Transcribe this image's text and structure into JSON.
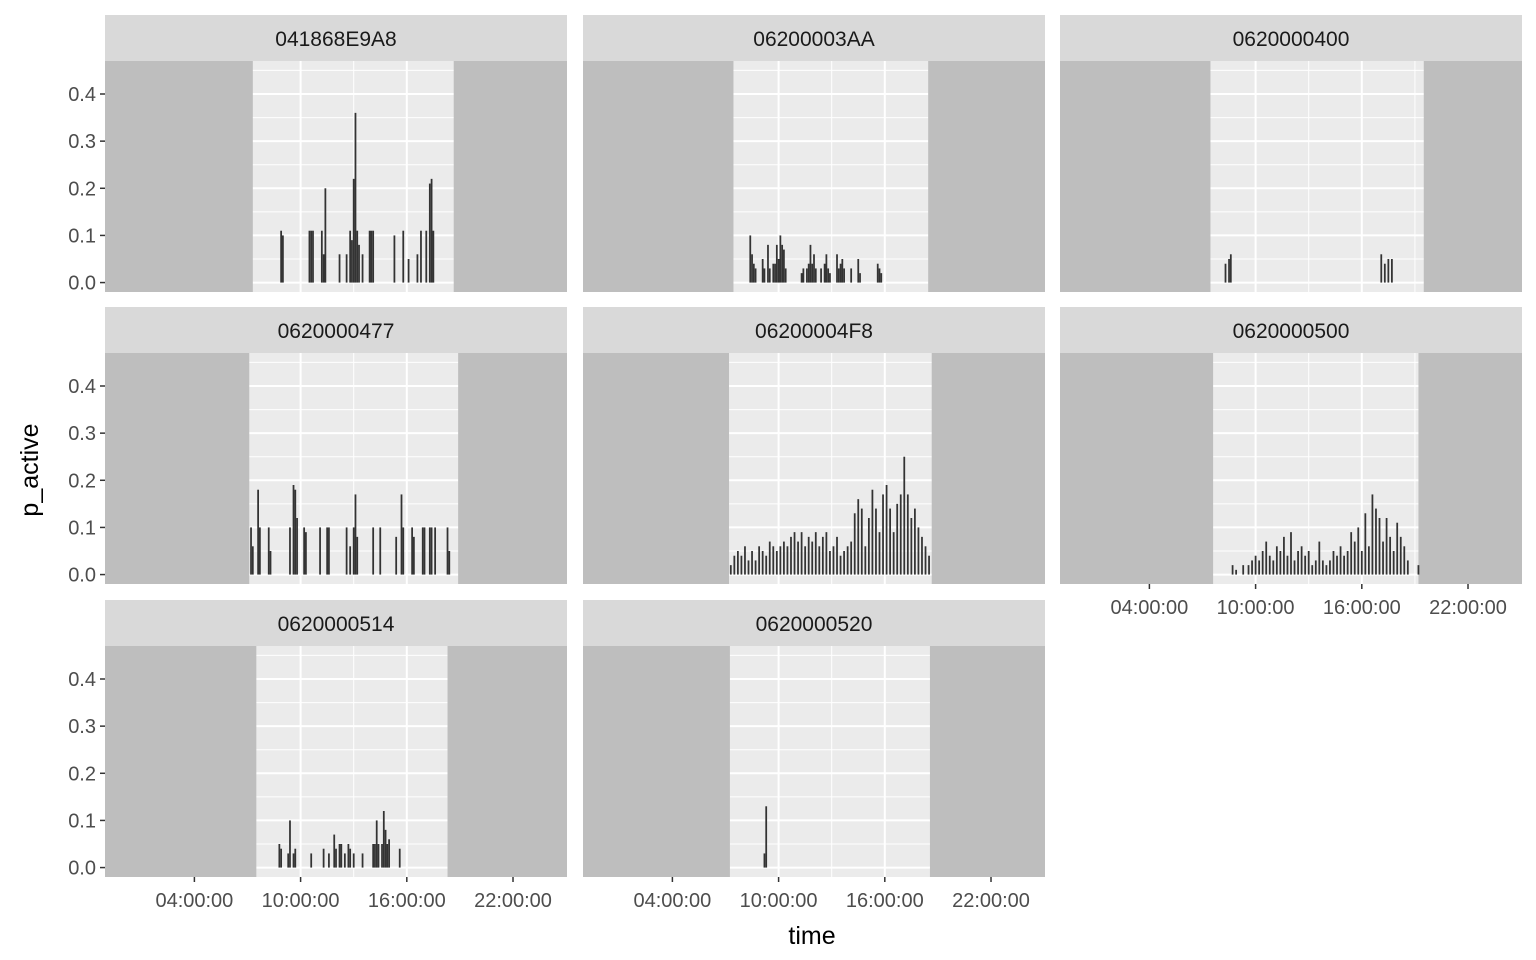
{
  "chart_data": {
    "type": "bar",
    "xlabel": "time",
    "ylabel": "p_active",
    "ylim": [
      -0.02,
      0.47
    ],
    "y_ticks": [
      {
        "value": 0.0,
        "label": "0.0"
      },
      {
        "value": 0.1,
        "label": "0.1"
      },
      {
        "value": 0.2,
        "label": "0.2"
      },
      {
        "value": 0.3,
        "label": "0.3"
      },
      {
        "value": 0.4,
        "label": "0.4"
      }
    ],
    "x_range_hours": [
      -1.05,
      25.05
    ],
    "x_ticks": [
      {
        "hours": 4,
        "label": "04:00:00"
      },
      {
        "hours": 10,
        "label": "10:00:00"
      },
      {
        "hours": 16,
        "label": "16:00:00"
      },
      {
        "hours": 22,
        "label": "22:00:00"
      }
    ],
    "shading": "night periods shaded gray; daylight window unshaded",
    "colors": {
      "bars": "#333333",
      "night": "#bebebe",
      "panel": "#ebebeb",
      "strip": "#d9d9d9",
      "grid": "#ffffff"
    },
    "panels": [
      {
        "name": "041868E9A8",
        "day_start": 7.3,
        "day_end": 18.65,
        "bars": [
          [
            8.9,
            0.11
          ],
          [
            9.0,
            0.1
          ],
          [
            10.5,
            0.11
          ],
          [
            10.6,
            0.11
          ],
          [
            10.7,
            0.11
          ],
          [
            11.2,
            0.11
          ],
          [
            11.3,
            0.06
          ],
          [
            11.4,
            0.2
          ],
          [
            12.2,
            0.06
          ],
          [
            12.6,
            0.06
          ],
          [
            12.8,
            0.11
          ],
          [
            12.9,
            0.09
          ],
          [
            13.0,
            0.22
          ],
          [
            13.1,
            0.36
          ],
          [
            13.2,
            0.11
          ],
          [
            13.3,
            0.08
          ],
          [
            13.5,
            0.06
          ],
          [
            13.9,
            0.11
          ],
          [
            14.0,
            0.11
          ],
          [
            14.1,
            0.11
          ],
          [
            15.3,
            0.1
          ],
          [
            15.8,
            0.11
          ],
          [
            16.1,
            0.05
          ],
          [
            16.6,
            0.06
          ],
          [
            16.8,
            0.11
          ],
          [
            17.1,
            0.11
          ],
          [
            17.3,
            0.21
          ],
          [
            17.4,
            0.22
          ],
          [
            17.5,
            0.11
          ]
        ]
      },
      {
        "name": "06200003AA",
        "day_start": 7.45,
        "day_end": 18.45,
        "bars": [
          [
            8.4,
            0.1
          ],
          [
            8.5,
            0.06
          ],
          [
            8.6,
            0.04
          ],
          [
            8.7,
            0.03
          ],
          [
            9.1,
            0.05
          ],
          [
            9.2,
            0.03
          ],
          [
            9.4,
            0.08
          ],
          [
            9.5,
            0.03
          ],
          [
            9.7,
            0.04
          ],
          [
            9.8,
            0.04
          ],
          [
            9.9,
            0.08
          ],
          [
            10.0,
            0.05
          ],
          [
            10.1,
            0.1
          ],
          [
            10.2,
            0.08
          ],
          [
            10.3,
            0.07
          ],
          [
            10.4,
            0.03
          ],
          [
            11.3,
            0.02
          ],
          [
            11.4,
            0.03
          ],
          [
            11.6,
            0.03
          ],
          [
            11.7,
            0.04
          ],
          [
            11.8,
            0.08
          ],
          [
            11.9,
            0.04
          ],
          [
            12.0,
            0.06
          ],
          [
            12.1,
            0.03
          ],
          [
            12.4,
            0.03
          ],
          [
            12.6,
            0.04
          ],
          [
            12.7,
            0.06
          ],
          [
            12.8,
            0.03
          ],
          [
            12.9,
            0.02
          ],
          [
            13.3,
            0.06
          ],
          [
            13.4,
            0.03
          ],
          [
            13.5,
            0.04
          ],
          [
            13.6,
            0.05
          ],
          [
            13.7,
            0.03
          ],
          [
            14.1,
            0.03
          ],
          [
            14.5,
            0.05
          ],
          [
            14.6,
            0.02
          ],
          [
            15.6,
            0.04
          ],
          [
            15.7,
            0.03
          ],
          [
            15.8,
            0.02
          ]
        ]
      },
      {
        "name": "0620000400",
        "day_start": 7.45,
        "day_end": 19.5,
        "bars": [
          [
            8.3,
            0.04
          ],
          [
            8.5,
            0.05
          ],
          [
            8.6,
            0.06
          ],
          [
            17.1,
            0.06
          ],
          [
            17.3,
            0.04
          ],
          [
            17.5,
            0.05
          ],
          [
            17.7,
            0.05
          ]
        ]
      },
      {
        "name": "0620000477",
        "day_start": 7.1,
        "day_end": 18.9,
        "bars": [
          [
            7.2,
            0.1
          ],
          [
            7.3,
            0.06
          ],
          [
            7.6,
            0.18
          ],
          [
            7.7,
            0.1
          ],
          [
            8.2,
            0.1
          ],
          [
            8.3,
            0.05
          ],
          [
            9.4,
            0.1
          ],
          [
            9.6,
            0.19
          ],
          [
            9.7,
            0.18
          ],
          [
            9.8,
            0.12
          ],
          [
            10.2,
            0.1
          ],
          [
            10.3,
            0.09
          ],
          [
            11.1,
            0.1
          ],
          [
            11.5,
            0.1
          ],
          [
            11.6,
            0.1
          ],
          [
            12.6,
            0.1
          ],
          [
            12.8,
            0.06
          ],
          [
            13.0,
            0.1
          ],
          [
            13.1,
            0.17
          ],
          [
            13.2,
            0.08
          ],
          [
            14.1,
            0.1
          ],
          [
            14.5,
            0.1
          ],
          [
            15.4,
            0.08
          ],
          [
            15.7,
            0.17
          ],
          [
            15.8,
            0.1
          ],
          [
            16.3,
            0.1
          ],
          [
            16.4,
            0.08
          ],
          [
            16.9,
            0.1
          ],
          [
            17.0,
            0.1
          ],
          [
            17.3,
            0.1
          ],
          [
            17.4,
            0.1
          ],
          [
            17.6,
            0.1
          ],
          [
            18.3,
            0.1
          ],
          [
            18.4,
            0.05
          ]
        ]
      },
      {
        "name": "06200004F8",
        "day_start": 7.2,
        "day_end": 18.65,
        "bars": [
          [
            7.3,
            0.02
          ],
          [
            7.5,
            0.04
          ],
          [
            7.7,
            0.05
          ],
          [
            7.9,
            0.04
          ],
          [
            8.1,
            0.06
          ],
          [
            8.3,
            0.03
          ],
          [
            8.5,
            0.05
          ],
          [
            8.7,
            0.03
          ],
          [
            8.9,
            0.06
          ],
          [
            9.1,
            0.05
          ],
          [
            9.3,
            0.04
          ],
          [
            9.5,
            0.07
          ],
          [
            9.7,
            0.06
          ],
          [
            9.9,
            0.05
          ],
          [
            10.1,
            0.06
          ],
          [
            10.3,
            0.07
          ],
          [
            10.5,
            0.06
          ],
          [
            10.7,
            0.08
          ],
          [
            10.9,
            0.09
          ],
          [
            11.1,
            0.07
          ],
          [
            11.3,
            0.09
          ],
          [
            11.5,
            0.06
          ],
          [
            11.7,
            0.08
          ],
          [
            11.9,
            0.07
          ],
          [
            12.1,
            0.09
          ],
          [
            12.3,
            0.06
          ],
          [
            12.5,
            0.08
          ],
          [
            12.7,
            0.09
          ],
          [
            12.9,
            0.05
          ],
          [
            13.1,
            0.06
          ],
          [
            13.3,
            0.08
          ],
          [
            13.5,
            0.04
          ],
          [
            13.7,
            0.05
          ],
          [
            13.9,
            0.06
          ],
          [
            14.1,
            0.07
          ],
          [
            14.3,
            0.13
          ],
          [
            14.5,
            0.16
          ],
          [
            14.7,
            0.14
          ],
          [
            14.9,
            0.06
          ],
          [
            15.1,
            0.12
          ],
          [
            15.3,
            0.18
          ],
          [
            15.5,
            0.14
          ],
          [
            15.7,
            0.09
          ],
          [
            15.9,
            0.17
          ],
          [
            16.1,
            0.19
          ],
          [
            16.3,
            0.14
          ],
          [
            16.5,
            0.09
          ],
          [
            16.7,
            0.15
          ],
          [
            16.9,
            0.17
          ],
          [
            17.1,
            0.25
          ],
          [
            17.3,
            0.17
          ],
          [
            17.5,
            0.12
          ],
          [
            17.7,
            0.14
          ],
          [
            17.9,
            0.1
          ],
          [
            18.1,
            0.08
          ],
          [
            18.3,
            0.06
          ],
          [
            18.5,
            0.04
          ]
        ]
      },
      {
        "name": "0620000500",
        "day_start": 7.6,
        "day_end": 19.2,
        "bars": [
          [
            8.7,
            0.02
          ],
          [
            8.9,
            0.01
          ],
          [
            9.3,
            0.02
          ],
          [
            9.6,
            0.02
          ],
          [
            9.8,
            0.03
          ],
          [
            10.0,
            0.04
          ],
          [
            10.2,
            0.03
          ],
          [
            10.4,
            0.05
          ],
          [
            10.6,
            0.07
          ],
          [
            10.8,
            0.04
          ],
          [
            11.0,
            0.03
          ],
          [
            11.2,
            0.06
          ],
          [
            11.4,
            0.05
          ],
          [
            11.6,
            0.08
          ],
          [
            11.8,
            0.04
          ],
          [
            12.0,
            0.09
          ],
          [
            12.2,
            0.03
          ],
          [
            12.4,
            0.05
          ],
          [
            12.6,
            0.06
          ],
          [
            12.8,
            0.04
          ],
          [
            13.0,
            0.05
          ],
          [
            13.2,
            0.02
          ],
          [
            13.4,
            0.03
          ],
          [
            13.6,
            0.07
          ],
          [
            13.8,
            0.03
          ],
          [
            14.0,
            0.02
          ],
          [
            14.2,
            0.03
          ],
          [
            14.4,
            0.05
          ],
          [
            14.6,
            0.04
          ],
          [
            14.8,
            0.06
          ],
          [
            15.0,
            0.04
          ],
          [
            15.2,
            0.05
          ],
          [
            15.4,
            0.09
          ],
          [
            15.6,
            0.07
          ],
          [
            15.8,
            0.1
          ],
          [
            16.0,
            0.05
          ],
          [
            16.2,
            0.13
          ],
          [
            16.4,
            0.06
          ],
          [
            16.6,
            0.17
          ],
          [
            16.8,
            0.14
          ],
          [
            17.0,
            0.12
          ],
          [
            17.2,
            0.07
          ],
          [
            17.4,
            0.12
          ],
          [
            17.6,
            0.08
          ],
          [
            17.8,
            0.05
          ],
          [
            18.0,
            0.11
          ],
          [
            18.2,
            0.08
          ],
          [
            18.4,
            0.06
          ],
          [
            18.6,
            0.03
          ],
          [
            19.2,
            0.02
          ]
        ]
      },
      {
        "name": "0620000514",
        "day_start": 7.5,
        "day_end": 18.3,
        "bars": [
          [
            8.8,
            0.05
          ],
          [
            8.9,
            0.04
          ],
          [
            9.3,
            0.03
          ],
          [
            9.4,
            0.1
          ],
          [
            9.6,
            0.03
          ],
          [
            9.7,
            0.04
          ],
          [
            10.6,
            0.03
          ],
          [
            11.3,
            0.04
          ],
          [
            11.6,
            0.03
          ],
          [
            11.9,
            0.07
          ],
          [
            12.0,
            0.04
          ],
          [
            12.2,
            0.05
          ],
          [
            12.3,
            0.05
          ],
          [
            12.5,
            0.03
          ],
          [
            12.7,
            0.05
          ],
          [
            12.8,
            0.04
          ],
          [
            13.0,
            0.03
          ],
          [
            13.5,
            0.03
          ],
          [
            14.1,
            0.05
          ],
          [
            14.2,
            0.05
          ],
          [
            14.3,
            0.1
          ],
          [
            14.4,
            0.05
          ],
          [
            14.6,
            0.05
          ],
          [
            14.7,
            0.12
          ],
          [
            14.8,
            0.08
          ],
          [
            14.9,
            0.05
          ],
          [
            15.0,
            0.06
          ],
          [
            15.6,
            0.04
          ]
        ]
      },
      {
        "name": "0620000520",
        "day_start": 7.25,
        "day_end": 18.55,
        "bars": [
          [
            9.2,
            0.03
          ],
          [
            9.3,
            0.13
          ]
        ]
      }
    ]
  }
}
